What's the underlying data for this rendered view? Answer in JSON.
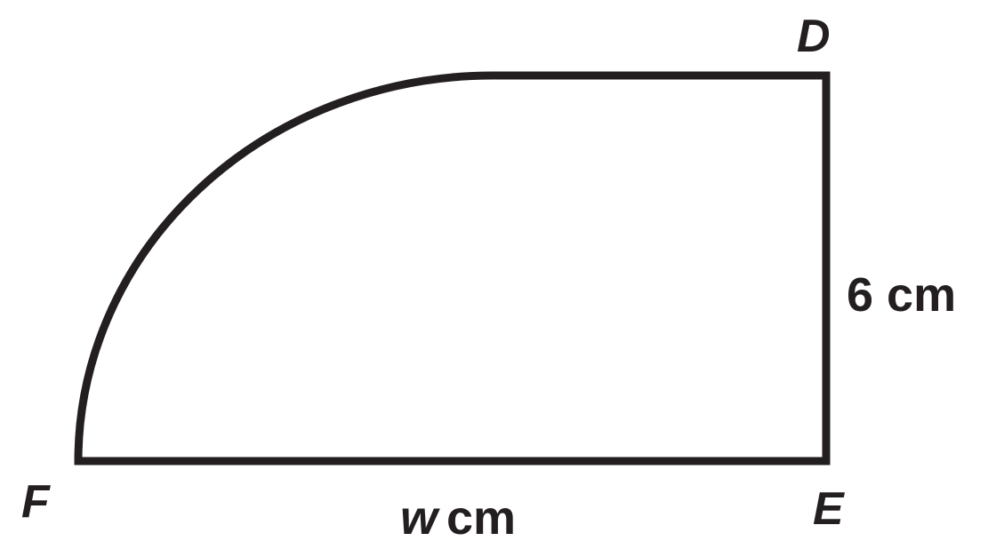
{
  "diagram": {
    "shape": "rectangle with quarter-circle arc corner",
    "vertices": {
      "D": "D",
      "E": "E",
      "F": "F"
    },
    "side_de_label": "6 cm",
    "side_fe": {
      "variable": "w",
      "unit": "cm"
    },
    "colors": {
      "stroke": "#231f20",
      "background": "#ffffff"
    }
  }
}
